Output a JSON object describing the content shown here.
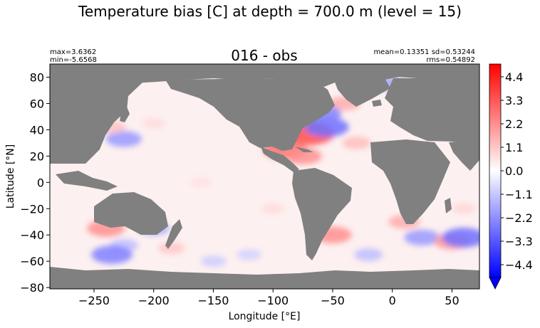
{
  "chart_data": {
    "type": "heatmap",
    "suptitle": "Temperature bias [C] at depth = 700.0 m (level = 15)",
    "title": "016 - obs",
    "stats_left": [
      "max=3.6362",
      "min=-5.6568"
    ],
    "stats_right": [
      "mean=0.13351 sd=0.53244",
      "rms=0.54892"
    ],
    "xlabel": "Longitude [°E]",
    "ylabel": "Latitude [°N]",
    "xlim": [
      -287,
      73
    ],
    "ylim": [
      -81,
      90
    ],
    "x_ticks": [
      -250,
      -200,
      -150,
      -100,
      -50,
      0,
      50
    ],
    "x_tick_labels": [
      "−250",
      "−200",
      "−150",
      "−100",
      "−50",
      "0",
      "50"
    ],
    "y_ticks": [
      80,
      60,
      40,
      20,
      0,
      -20,
      -40,
      -60,
      -80
    ],
    "y_tick_labels": [
      "80",
      "60",
      "40",
      "20",
      "0",
      "−20",
      "−40",
      "−60",
      "−80"
    ],
    "colorbar": {
      "range": [
        -5,
        5
      ],
      "ticks": [
        4.4,
        3.3,
        2.2,
        1.1,
        0.0,
        -1.1,
        -2.2,
        -3.3,
        -4.4
      ],
      "tick_labels": [
        "4.4",
        "3.3",
        "2.2",
        "1.1",
        "0.0",
        "−1.1",
        "−2.2",
        "−3.3",
        "−4.4"
      ],
      "colormap": [
        "#0000ff",
        "#ffffff",
        "#ff0000"
      ],
      "extend": "min"
    },
    "land_color": "#808080",
    "ocean_base_color": "#fdf0f0",
    "bias_features": [
      {
        "lon": -70,
        "lat": 37,
        "value": 3.5
      },
      {
        "lon": -55,
        "lat": 42,
        "value": -2.8
      },
      {
        "lon": -40,
        "lat": 60,
        "value": 1.6
      },
      {
        "lon": -60,
        "lat": 52,
        "value": -2.5
      },
      {
        "lon": -90,
        "lat": 25,
        "value": 2.8
      },
      {
        "lon": -75,
        "lat": 20,
        "value": 2.2
      },
      {
        "lon": 0,
        "lat": 75,
        "value": -1.8
      },
      {
        "lon": -30,
        "lat": 30,
        "value": 1.3
      },
      {
        "lon": -225,
        "lat": 33,
        "value": -2.0
      },
      {
        "lon": -200,
        "lat": 45,
        "value": 0.7
      },
      {
        "lon": -235,
        "lat": 42,
        "value": 1.2
      },
      {
        "lon": -240,
        "lat": -35,
        "value": 2.2
      },
      {
        "lon": -200,
        "lat": -35,
        "value": -1.6
      },
      {
        "lon": -225,
        "lat": -48,
        "value": -1.3
      },
      {
        "lon": -185,
        "lat": -50,
        "value": 1.1
      },
      {
        "lon": -235,
        "lat": -55,
        "value": -2.5
      },
      {
        "lon": -50,
        "lat": -40,
        "value": 2.2
      },
      {
        "lon": 10,
        "lat": -30,
        "value": 1.6
      },
      {
        "lon": 25,
        "lat": -42,
        "value": -2.0
      },
      {
        "lon": 50,
        "lat": -45,
        "value": 2.0
      },
      {
        "lon": 60,
        "lat": -42,
        "value": -2.8
      },
      {
        "lon": -120,
        "lat": -55,
        "value": -0.9
      },
      {
        "lon": -20,
        "lat": -55,
        "value": -1.3
      },
      {
        "lon": -150,
        "lat": -60,
        "value": -1.0
      },
      {
        "lon": 60,
        "lat": -20,
        "value": 0.8
      },
      {
        "lon": -160,
        "lat": 0,
        "value": 0.6
      },
      {
        "lon": -100,
        "lat": -20,
        "value": 0.7
      }
    ]
  }
}
